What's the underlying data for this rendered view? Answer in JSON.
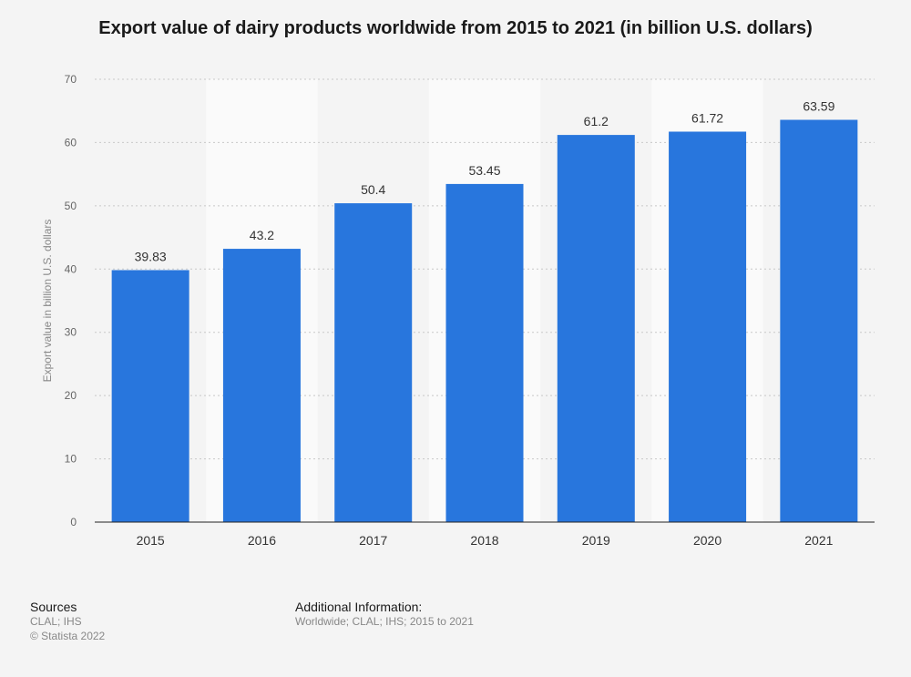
{
  "chart_data": {
    "type": "bar",
    "title": "Export value of dairy products worldwide from 2015 to 2021 (in billion U.S. dollars)",
    "categories": [
      "2015",
      "2016",
      "2017",
      "2018",
      "2019",
      "2020",
      "2021"
    ],
    "values": [
      39.83,
      43.2,
      50.4,
      53.45,
      61.2,
      61.72,
      63.59
    ],
    "value_labels": [
      "39.83",
      "43.2",
      "50.4",
      "53.45",
      "61.2",
      "61.72",
      "63.59"
    ],
    "xlabel": "",
    "ylabel": "Export value in billion U.S. dollars",
    "ylim": [
      0,
      70
    ],
    "yticks": [
      0,
      10,
      20,
      30,
      40,
      50,
      60,
      70
    ],
    "bar_color": "#2876dd",
    "grid": true
  },
  "footer": {
    "sources_title": "Sources",
    "sources_text": "CLAL; IHS",
    "copyright": "© Statista 2022",
    "additional_title": "Additional Information:",
    "additional_text": "Worldwide; CLAL; IHS; 2015 to 2021"
  }
}
